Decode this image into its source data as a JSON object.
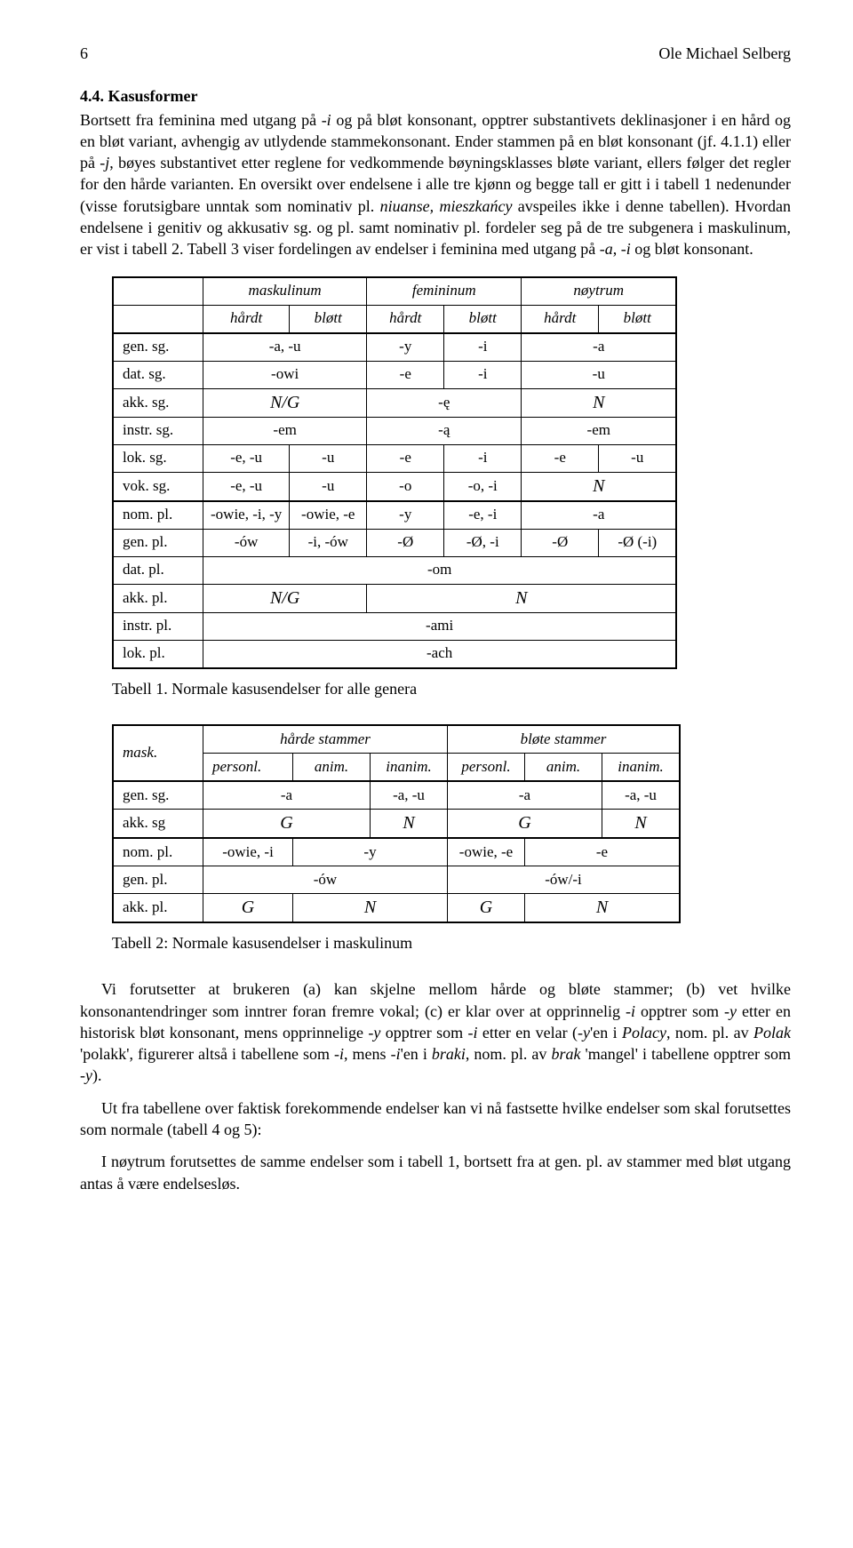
{
  "header": {
    "page_number": "6",
    "author": "Ole Michael Selberg"
  },
  "section": {
    "number": "4.4.",
    "title": "Kasusformer"
  },
  "para1": "Bortsett fra feminina med utgang på -i og på bløt konsonant, opptrer substantivets deklinasjoner i en hård og en bløt variant, avhengig av utlydende stammekonsonant. Ender stammen på en bløt konsonant (jf. 4.1.1) eller på -j, bøyes substantivet etter reglene for vedkommende bøyningsklasses bløte variant, ellers følger det regler for den hårde varianten. En oversikt over endelsene i alle tre kjønn og begge tall er gitt i i tabell 1 nedenunder (visse forutsigbare unntak som nominativ pl. niuanse, mieszkańcy avspeiles ikke i denne tabellen). Hvordan endelsene i genitiv og akkusativ sg. og pl. samt nominativ pl. fordeler seg på de tre subgenera i maskulinum, er vist i tabell 2. Tabell 3 viser fordelingen av endelser i feminina med utgang på -a, -i og bløt konsonant.",
  "table1": {
    "top_headers": [
      "maskulinum",
      "femininum",
      "nøytrum"
    ],
    "sub_headers": [
      "hårdt",
      "bløtt",
      "hårdt",
      "bløtt",
      "hårdt",
      "bløtt"
    ],
    "rows": [
      {
        "label": "gen. sg.",
        "cells": [
          [
            "-a, -u",
            2
          ],
          [
            "-y",
            1
          ],
          [
            "-i",
            1
          ],
          [
            "-a",
            2
          ]
        ]
      },
      {
        "label": "dat. sg.",
        "cells": [
          [
            "-owi",
            2
          ],
          [
            "-e",
            1
          ],
          [
            "-i",
            1
          ],
          [
            "-u",
            2
          ]
        ]
      },
      {
        "label": "akk. sg.",
        "cells": [
          [
            "N/G",
            2,
            "script"
          ],
          [
            "-ę",
            2
          ],
          [
            "N",
            2,
            "script"
          ]
        ]
      },
      {
        "label": "instr. sg.",
        "cells": [
          [
            "-em",
            2
          ],
          [
            "-ą",
            2
          ],
          [
            "-em",
            2
          ]
        ]
      },
      {
        "label": "lok. sg.",
        "cells": [
          [
            "-e, -u",
            1
          ],
          [
            "-u",
            1
          ],
          [
            "-e",
            1
          ],
          [
            "-i",
            1
          ],
          [
            "-e",
            1
          ],
          [
            "-u",
            1
          ]
        ]
      },
      {
        "label": "vok. sg.",
        "cells": [
          [
            "-e, -u",
            1
          ],
          [
            "-u",
            1
          ],
          [
            "-o",
            1
          ],
          [
            "-o, -i",
            1
          ],
          [
            "N",
            2,
            "script"
          ]
        ]
      },
      {
        "label": "nom. pl.",
        "cells": [
          [
            "-owie, -i, -y",
            1
          ],
          [
            "-owie, -e",
            1
          ],
          [
            "-y",
            1
          ],
          [
            "-e, -i",
            1
          ],
          [
            "-a",
            2
          ]
        ]
      },
      {
        "label": "gen. pl.",
        "cells": [
          [
            "-ów",
            1
          ],
          [
            "-i, -ów",
            1
          ],
          [
            "-Ø",
            1
          ],
          [
            "-Ø, -i",
            1
          ],
          [
            "-Ø",
            1
          ],
          [
            "-Ø (-i)",
            1
          ]
        ]
      },
      {
        "label": "dat. pl.",
        "cells": [
          [
            "-om",
            6
          ]
        ]
      },
      {
        "label": "akk. pl.",
        "cells": [
          [
            "N/G",
            2,
            "script"
          ],
          [
            "N",
            4,
            "script"
          ]
        ]
      },
      {
        "label": "instr. pl.",
        "cells": [
          [
            "-ami",
            6
          ]
        ]
      },
      {
        "label": "lok. pl.",
        "cells": [
          [
            "-ach",
            6
          ]
        ]
      }
    ],
    "caption": "Tabell 1. Normale kasusendelser for alle genera"
  },
  "table2": {
    "corner": "mask.",
    "top_headers": [
      "hårde stammer",
      "bløte stammer"
    ],
    "sub_headers": [
      "personl.",
      "anim.",
      "inanim.",
      "personl.",
      "anim.",
      "inanim."
    ],
    "rows": [
      {
        "label": "gen. sg.",
        "cells": [
          [
            "-a",
            2
          ],
          [
            "-a, -u",
            1
          ],
          [
            "-a",
            2
          ],
          [
            "-a, -u",
            1
          ]
        ]
      },
      {
        "label": "akk. sg",
        "cells": [
          [
            "G",
            2,
            "script"
          ],
          [
            "N",
            1,
            "script"
          ],
          [
            "G",
            2,
            "script"
          ],
          [
            "N",
            1,
            "script"
          ]
        ]
      },
      {
        "label": "nom. pl.",
        "cells": [
          [
            "-owie, -i",
            1
          ],
          [
            "-y",
            2
          ],
          [
            "-owie, -e",
            1
          ],
          [
            "-e",
            2
          ]
        ]
      },
      {
        "label": "gen. pl.",
        "cells": [
          [
            "-ów",
            3
          ],
          [
            "-ów/-i",
            3
          ]
        ]
      },
      {
        "label": "akk. pl.",
        "cells": [
          [
            "G",
            1,
            "script"
          ],
          [
            "N",
            2,
            "script"
          ],
          [
            "G",
            1,
            "script"
          ],
          [
            "N",
            2,
            "script"
          ]
        ]
      }
    ],
    "caption": "Tabell 2: Normale kasusendelser i maskulinum"
  },
  "para2": "Vi forutsetter at brukeren (a) kan skjelne mellom hårde og bløte stammer; (b) vet hvilke konsonantendringer som inntrer foran fremre vokal; (c) er klar over at opprinnelig -i opptrer som -y etter en historisk bløt konsonant, mens opprinnelige -y opptrer som -i etter en velar (-y'en i Polacy, nom. pl. av Polak 'polakk', figurerer altså i tabellene som -i, mens -i'en i braki, nom. pl. av brak 'mangel' i tabellene opptrer som -y).",
  "para3": "Ut fra tabellene over faktisk forekommende endelser kan vi nå fastsette hvilke endelser som skal forutsettes som normale (tabell 4 og 5):",
  "para4": "I nøytrum forutsettes de samme endelser som i tabell 1, bortsett fra at gen. pl. av stammer med bløt utgang antas å være endelsesløs."
}
